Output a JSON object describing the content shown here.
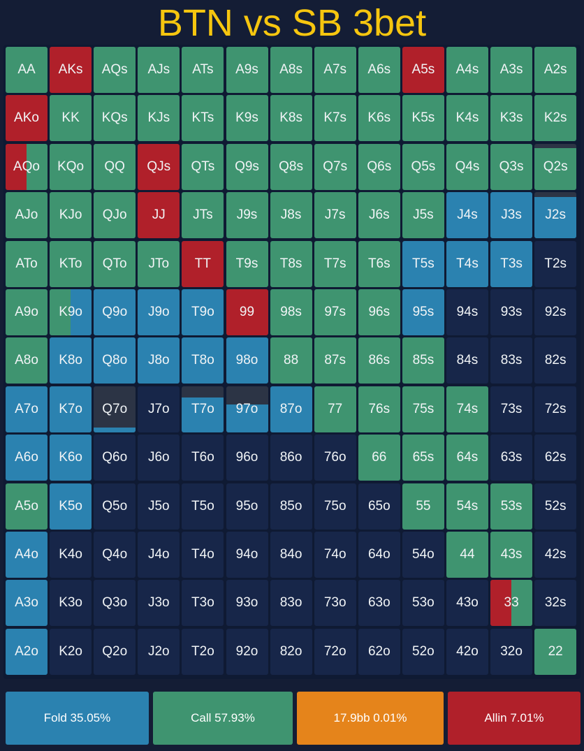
{
  "title": "BTN vs SB 3bet",
  "colors": {
    "fold": "#2b82b0",
    "call": "#3f9470",
    "raise": "#e5841b",
    "allin": "#b0202a",
    "empty": "#172649",
    "dark": "#2c3445"
  },
  "legend": [
    {
      "key": "fold",
      "label": "Fold 35.05%"
    },
    {
      "key": "call",
      "label": "Call 57.93%"
    },
    {
      "key": "raise",
      "label": "17.9bb 0.01%"
    },
    {
      "key": "allin",
      "label": "Allin 7.01%"
    }
  ],
  "chart_data": {
    "type": "heatmap",
    "title": "BTN vs SB 3bet",
    "actions": [
      "Fold",
      "Call",
      "17.9bb",
      "Allin"
    ],
    "totals_pct": {
      "Fold": 35.05,
      "Call": 57.93,
      "17.9bb": 0.01,
      "Allin": 7.01
    },
    "rows": [
      [
        {
          "hand": "AA",
          "call": 1
        },
        {
          "hand": "AKs",
          "allin": 1
        },
        {
          "hand": "AQs",
          "call": 1
        },
        {
          "hand": "AJs",
          "call": 1
        },
        {
          "hand": "ATs",
          "call": 1
        },
        {
          "hand": "A9s",
          "call": 1
        },
        {
          "hand": "A8s",
          "call": 1
        },
        {
          "hand": "A7s",
          "call": 1
        },
        {
          "hand": "A6s",
          "call": 1
        },
        {
          "hand": "A5s",
          "allin": 1
        },
        {
          "hand": "A4s",
          "call": 1
        },
        {
          "hand": "A3s",
          "call": 1
        },
        {
          "hand": "A2s",
          "call": 1
        }
      ],
      [
        {
          "hand": "AKo",
          "allin": 1
        },
        {
          "hand": "KK",
          "call": 1
        },
        {
          "hand": "KQs",
          "call": 1
        },
        {
          "hand": "KJs",
          "call": 1
        },
        {
          "hand": "KTs",
          "call": 1
        },
        {
          "hand": "K9s",
          "call": 1
        },
        {
          "hand": "K8s",
          "call": 1
        },
        {
          "hand": "K7s",
          "call": 1
        },
        {
          "hand": "K6s",
          "call": 1
        },
        {
          "hand": "K5s",
          "call": 1
        },
        {
          "hand": "K4s",
          "call": 1
        },
        {
          "hand": "K3s",
          "call": 1
        },
        {
          "hand": "K2s",
          "call": 1
        }
      ],
      [
        {
          "hand": "AQo",
          "allin": 0.5,
          "call": 0.5
        },
        {
          "hand": "KQo",
          "call": 1
        },
        {
          "hand": "QQ",
          "call": 1
        },
        {
          "hand": "QJs",
          "allin": 1
        },
        {
          "hand": "QTs",
          "call": 1
        },
        {
          "hand": "Q9s",
          "call": 1
        },
        {
          "hand": "Q8s",
          "call": 1
        },
        {
          "hand": "Q7s",
          "call": 1
        },
        {
          "hand": "Q6s",
          "call": 1
        },
        {
          "hand": "Q5s",
          "call": 1
        },
        {
          "hand": "Q4s",
          "call": 1
        },
        {
          "hand": "Q3s",
          "call": 1
        },
        {
          "hand": "Q2s",
          "call": 0.9
        }
      ],
      [
        {
          "hand": "AJo",
          "call": 1
        },
        {
          "hand": "KJo",
          "call": 1
        },
        {
          "hand": "QJo",
          "call": 1
        },
        {
          "hand": "JJ",
          "allin": 1
        },
        {
          "hand": "JTs",
          "call": 1
        },
        {
          "hand": "J9s",
          "call": 1
        },
        {
          "hand": "J8s",
          "call": 1
        },
        {
          "hand": "J7s",
          "call": 1
        },
        {
          "hand": "J6s",
          "call": 1
        },
        {
          "hand": "J5s",
          "call": 1
        },
        {
          "hand": "J4s",
          "fold": 1
        },
        {
          "hand": "J3s",
          "fold": 1
        },
        {
          "hand": "J2s",
          "fold": 0.9
        }
      ],
      [
        {
          "hand": "ATo",
          "call": 1
        },
        {
          "hand": "KTo",
          "call": 1
        },
        {
          "hand": "QTo",
          "call": 1
        },
        {
          "hand": "JTo",
          "call": 1
        },
        {
          "hand": "TT",
          "allin": 1
        },
        {
          "hand": "T9s",
          "call": 1
        },
        {
          "hand": "T8s",
          "call": 1
        },
        {
          "hand": "T7s",
          "call": 1
        },
        {
          "hand": "T6s",
          "call": 1
        },
        {
          "hand": "T5s",
          "fold": 1
        },
        {
          "hand": "T4s",
          "fold": 1
        },
        {
          "hand": "T3s",
          "fold": 1
        },
        {
          "hand": "T2s"
        }
      ],
      [
        {
          "hand": "A9o",
          "call": 1
        },
        {
          "hand": "K9o",
          "call": 0.5,
          "fold": 0.5
        },
        {
          "hand": "Q9o",
          "fold": 1
        },
        {
          "hand": "J9o",
          "fold": 1
        },
        {
          "hand": "T9o",
          "fold": 1
        },
        {
          "hand": "99",
          "allin": 1
        },
        {
          "hand": "98s",
          "call": 1
        },
        {
          "hand": "97s",
          "call": 1
        },
        {
          "hand": "96s",
          "call": 1
        },
        {
          "hand": "95s",
          "fold": 1
        },
        {
          "hand": "94s"
        },
        {
          "hand": "93s"
        },
        {
          "hand": "92s"
        }
      ],
      [
        {
          "hand": "A8o",
          "call": 1
        },
        {
          "hand": "K8o",
          "fold": 1
        },
        {
          "hand": "Q8o",
          "fold": 1
        },
        {
          "hand": "J8o",
          "fold": 1
        },
        {
          "hand": "T8o",
          "fold": 1
        },
        {
          "hand": "98o",
          "fold": 1
        },
        {
          "hand": "88",
          "call": 1
        },
        {
          "hand": "87s",
          "call": 1
        },
        {
          "hand": "86s",
          "call": 1
        },
        {
          "hand": "85s",
          "call": 1
        },
        {
          "hand": "84s"
        },
        {
          "hand": "83s"
        },
        {
          "hand": "82s"
        }
      ],
      [
        {
          "hand": "A7o",
          "fold": 1
        },
        {
          "hand": "K7o",
          "fold": 1
        },
        {
          "hand": "Q7o",
          "fold": 0.1
        },
        {
          "hand": "J7o"
        },
        {
          "hand": "T7o",
          "fold": 0.75
        },
        {
          "hand": "97o",
          "fold": 0.6
        },
        {
          "hand": "87o",
          "fold": 1
        },
        {
          "hand": "77",
          "call": 1
        },
        {
          "hand": "76s",
          "call": 1
        },
        {
          "hand": "75s",
          "call": 1
        },
        {
          "hand": "74s",
          "call": 1
        },
        {
          "hand": "73s"
        },
        {
          "hand": "72s"
        }
      ],
      [
        {
          "hand": "A6o",
          "fold": 1
        },
        {
          "hand": "K6o",
          "fold": 1
        },
        {
          "hand": "Q6o"
        },
        {
          "hand": "J6o"
        },
        {
          "hand": "T6o"
        },
        {
          "hand": "96o"
        },
        {
          "hand": "86o"
        },
        {
          "hand": "76o"
        },
        {
          "hand": "66",
          "call": 1
        },
        {
          "hand": "65s",
          "call": 1
        },
        {
          "hand": "64s",
          "call": 1
        },
        {
          "hand": "63s"
        },
        {
          "hand": "62s"
        }
      ],
      [
        {
          "hand": "A5o",
          "call": 1
        },
        {
          "hand": "K5o",
          "fold": 1
        },
        {
          "hand": "Q5o"
        },
        {
          "hand": "J5o"
        },
        {
          "hand": "T5o"
        },
        {
          "hand": "95o"
        },
        {
          "hand": "85o"
        },
        {
          "hand": "75o"
        },
        {
          "hand": "65o"
        },
        {
          "hand": "55",
          "call": 1
        },
        {
          "hand": "54s",
          "call": 1
        },
        {
          "hand": "53s",
          "call": 1
        },
        {
          "hand": "52s"
        }
      ],
      [
        {
          "hand": "A4o",
          "fold": 1
        },
        {
          "hand": "K4o"
        },
        {
          "hand": "Q4o"
        },
        {
          "hand": "J4o"
        },
        {
          "hand": "T4o"
        },
        {
          "hand": "94o"
        },
        {
          "hand": "84o"
        },
        {
          "hand": "74o"
        },
        {
          "hand": "64o"
        },
        {
          "hand": "54o"
        },
        {
          "hand": "44",
          "call": 1
        },
        {
          "hand": "43s",
          "call": 1
        },
        {
          "hand": "42s"
        }
      ],
      [
        {
          "hand": "A3o",
          "fold": 1
        },
        {
          "hand": "K3o"
        },
        {
          "hand": "Q3o"
        },
        {
          "hand": "J3o"
        },
        {
          "hand": "T3o"
        },
        {
          "hand": "93o"
        },
        {
          "hand": "83o"
        },
        {
          "hand": "73o"
        },
        {
          "hand": "63o"
        },
        {
          "hand": "53o"
        },
        {
          "hand": "43o"
        },
        {
          "hand": "33",
          "allin": 0.5,
          "call": 0.5
        },
        {
          "hand": "32s"
        }
      ],
      [
        {
          "hand": "A2o",
          "fold": 1
        },
        {
          "hand": "K2o"
        },
        {
          "hand": "Q2o"
        },
        {
          "hand": "J2o"
        },
        {
          "hand": "T2o"
        },
        {
          "hand": "92o"
        },
        {
          "hand": "82o"
        },
        {
          "hand": "72o"
        },
        {
          "hand": "62o"
        },
        {
          "hand": "52o"
        },
        {
          "hand": "42o"
        },
        {
          "hand": "32o"
        },
        {
          "hand": "22",
          "call": 1
        }
      ]
    ]
  }
}
